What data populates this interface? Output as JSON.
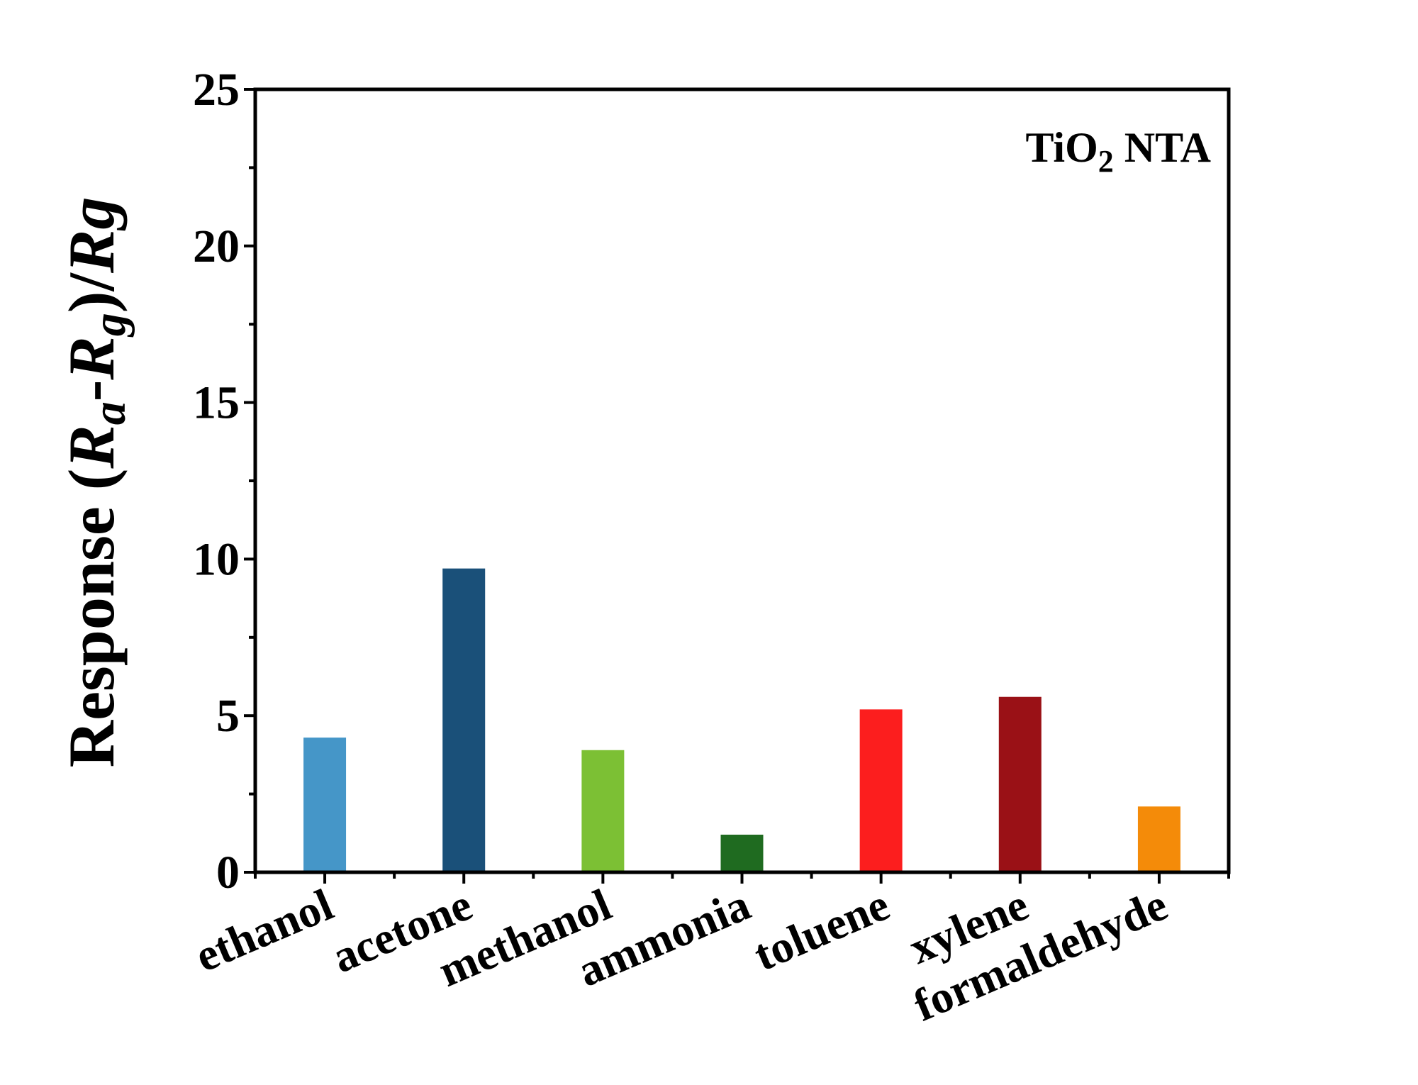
{
  "chart_data": {
    "type": "bar",
    "categories": [
      "ethanol",
      "acetone",
      "methanol",
      "ammonia",
      "toluene",
      "xylene",
      "formaldehyde"
    ],
    "values": [
      4.3,
      9.7,
      3.9,
      1.2,
      5.2,
      5.6,
      2.1
    ],
    "colors": [
      "#4596c8",
      "#1a5079",
      "#7cc034",
      "#1f6b20",
      "#fc1e1e",
      "#9a1116",
      "#f48b09"
    ],
    "title": "",
    "annotation": {
      "main": "TiO",
      "sub": "2",
      "rest": " NTA"
    },
    "xlabel": "",
    "ylabel": {
      "prefix": "Response (",
      "r1": "R",
      "s1": "a",
      "dash": "-",
      "r2": "R",
      "s2": "g",
      "close": ")/",
      "r3": "R",
      "s3": "g"
    },
    "ylim": [
      0,
      25
    ],
    "yticks": [
      0,
      5,
      10,
      15,
      20,
      25
    ],
    "grid": false
  }
}
